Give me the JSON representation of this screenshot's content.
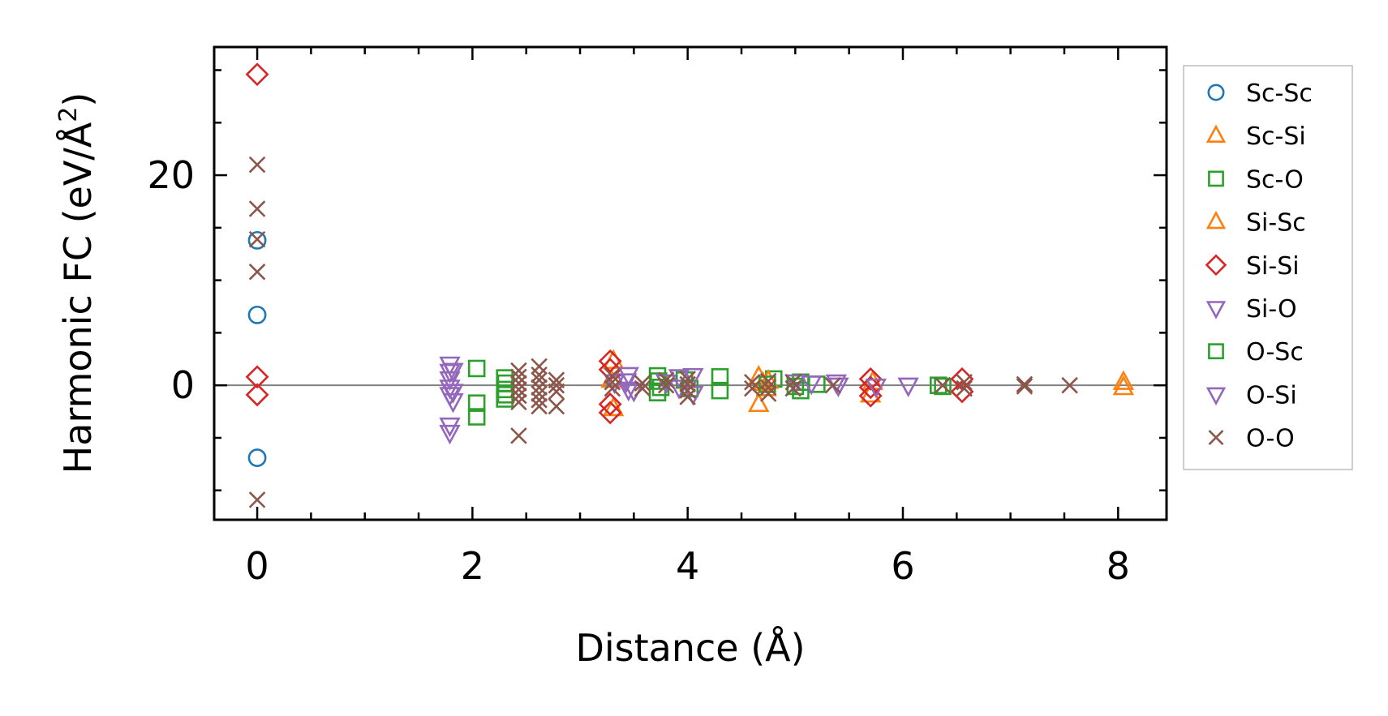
{
  "chart_data": {
    "type": "scatter",
    "xlabel": "Distance (Å)",
    "ylabel": "Harmonic FC (eV/Å",
    "ylabel_sup": "2",
    "ylabel_end": ")",
    "xlim": [
      -0.4,
      8.45
    ],
    "ylim": [
      -12.8,
      32.2
    ],
    "xticks": [
      0,
      2,
      4,
      6,
      8
    ],
    "xtick_labels": [
      "0",
      "2",
      "4",
      "6",
      "8"
    ],
    "yticks": [
      0,
      20
    ],
    "ytick_labels": [
      "0",
      "20"
    ],
    "zero_line": true,
    "grid": false,
    "legend_position": "outside-right",
    "series": [
      {
        "name": "Sc-Sc",
        "marker": "circle",
        "color": "#1f77b4",
        "points": [
          [
            0,
            13.8
          ],
          [
            0,
            6.7
          ],
          [
            0,
            -6.9
          ]
        ]
      },
      {
        "name": "Sc-Si",
        "marker": "triangle-up",
        "color": "#ff7f0e",
        "points": [
          [
            3.29,
            0.5
          ],
          [
            4.66,
            0.8
          ],
          [
            4.7,
            0.2
          ],
          [
            4.73,
            -0.3
          ],
          [
            5.7,
            -0.9
          ],
          [
            8.05,
            -0.2
          ]
        ]
      },
      {
        "name": "Sc-O",
        "marker": "square",
        "color": "#2ca02c",
        "points": [
          [
            2.04,
            1.6
          ],
          [
            2.04,
            -1.7
          ],
          [
            2.04,
            -3.0
          ],
          [
            2.3,
            0.7
          ],
          [
            2.3,
            -0.4
          ],
          [
            2.3,
            -1.3
          ],
          [
            3.72,
            0.9
          ],
          [
            3.72,
            -0.7
          ],
          [
            3.97,
            0.5
          ],
          [
            4.3,
            0.8
          ],
          [
            4.3,
            -0.5
          ],
          [
            4.8,
            0.6
          ],
          [
            5.05,
            0.3
          ],
          [
            5.05,
            -0.5
          ],
          [
            5.2,
            0.1
          ],
          [
            6.33,
            0.0
          ]
        ]
      },
      {
        "name": "Si-Sc",
        "marker": "triangle-up",
        "color": "#ff7f0e",
        "points": [
          [
            3.31,
            2.3
          ],
          [
            3.31,
            -2.2
          ],
          [
            4.66,
            -1.8
          ],
          [
            4.75,
            0.4
          ],
          [
            5.72,
            0.3
          ],
          [
            8.05,
            0.3
          ]
        ]
      },
      {
        "name": "Si-Si",
        "marker": "diamond",
        "color": "#d62728",
        "points": [
          [
            0,
            29.6
          ],
          [
            0,
            0.8
          ],
          [
            0,
            -0.9
          ],
          [
            3.28,
            2.3
          ],
          [
            3.28,
            1.5
          ],
          [
            3.28,
            -1.8
          ],
          [
            3.28,
            -2.6
          ],
          [
            5.7,
            0.6
          ],
          [
            5.7,
            -0.2
          ],
          [
            5.7,
            -1.0
          ],
          [
            6.55,
            0.6
          ],
          [
            6.55,
            -0.6
          ]
        ]
      },
      {
        "name": "Si-O",
        "marker": "triangle-down",
        "color": "#9467bd",
        "points": [
          [
            1.79,
            2.0
          ],
          [
            1.79,
            1.3
          ],
          [
            1.79,
            0.6
          ],
          [
            1.79,
            -0.2
          ],
          [
            1.79,
            -0.9
          ],
          [
            1.79,
            -3.8
          ],
          [
            1.79,
            -4.5
          ],
          [
            3.32,
            0.3
          ],
          [
            3.45,
            1.0
          ],
          [
            3.45,
            -0.4
          ],
          [
            3.92,
            0.8
          ],
          [
            3.92,
            -0.2
          ],
          [
            5.0,
            0.3
          ],
          [
            5.38,
            0.3
          ],
          [
            5.75,
            -0.1
          ],
          [
            6.05,
            0.0
          ]
        ]
      },
      {
        "name": "O-Sc",
        "marker": "square",
        "color": "#2ca02c",
        "points": [
          [
            2.31,
            0.2
          ],
          [
            2.31,
            -0.9
          ],
          [
            3.73,
            0.4
          ],
          [
            3.75,
            -0.2
          ],
          [
            4.02,
            -0.3
          ],
          [
            4.74,
            0.1
          ],
          [
            5.0,
            -0.1
          ],
          [
            6.37,
            -0.1
          ]
        ]
      },
      {
        "name": "O-Si",
        "marker": "triangle-down",
        "color": "#9467bd",
        "points": [
          [
            1.82,
            1.4
          ],
          [
            1.82,
            -0.6
          ],
          [
            1.82,
            -1.5
          ],
          [
            3.43,
            0.4
          ],
          [
            3.5,
            -0.5
          ],
          [
            3.8,
            0.3
          ],
          [
            4.05,
            0.9
          ],
          [
            4.05,
            -0.8
          ],
          [
            5.15,
            0.2
          ],
          [
            5.4,
            0.0
          ]
        ]
      },
      {
        "name": "O-O",
        "marker": "x",
        "color": "#8c564b",
        "points": [
          [
            0,
            21.0
          ],
          [
            0,
            16.8
          ],
          [
            0,
            13.9
          ],
          [
            0,
            10.8
          ],
          [
            0,
            -10.9
          ],
          [
            2.43,
            1.4
          ],
          [
            2.43,
            0.8
          ],
          [
            2.43,
            0.2
          ],
          [
            2.43,
            -0.4
          ],
          [
            2.43,
            -1.0
          ],
          [
            2.43,
            -1.6
          ],
          [
            2.43,
            -4.8
          ],
          [
            2.62,
            1.8
          ],
          [
            2.62,
            1.0
          ],
          [
            2.62,
            0.5
          ],
          [
            2.62,
            -0.2
          ],
          [
            2.62,
            -0.8
          ],
          [
            2.62,
            -1.4
          ],
          [
            2.62,
            -2.0
          ],
          [
            2.78,
            0.5
          ],
          [
            2.78,
            0.0
          ],
          [
            2.78,
            -0.6
          ],
          [
            2.78,
            -2.0
          ],
          [
            3.3,
            0.9
          ],
          [
            3.3,
            0.3
          ],
          [
            3.3,
            -0.3
          ],
          [
            3.58,
            0.2
          ],
          [
            3.58,
            -0.3
          ],
          [
            3.8,
            0.5
          ],
          [
            3.8,
            0.0
          ],
          [
            4.0,
            0.6
          ],
          [
            4.0,
            0.1
          ],
          [
            4.0,
            -0.5
          ],
          [
            4.0,
            -1.1
          ],
          [
            4.6,
            0.3
          ],
          [
            4.6,
            -0.3
          ],
          [
            4.75,
            0.4
          ],
          [
            4.75,
            -0.2
          ],
          [
            4.75,
            -0.8
          ],
          [
            4.98,
            0.3
          ],
          [
            4.98,
            -0.3
          ],
          [
            5.35,
            0.0
          ],
          [
            6.37,
            0.0
          ],
          [
            6.57,
            0.3
          ],
          [
            6.57,
            -0.3
          ],
          [
            7.13,
            0.1
          ],
          [
            7.13,
            -0.1
          ],
          [
            7.55,
            0.0
          ]
        ]
      }
    ]
  }
}
